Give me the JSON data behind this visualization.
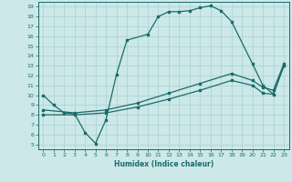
{
  "xlabel": "Humidex (Indice chaleur)",
  "bg_color": "#cce8e8",
  "grid_color": "#aad0d0",
  "line_color": "#1a6b6b",
  "xlim": [
    -0.5,
    23.5
  ],
  "ylim": [
    4.5,
    19.5
  ],
  "xticks": [
    0,
    1,
    2,
    3,
    4,
    5,
    6,
    7,
    8,
    9,
    10,
    11,
    12,
    13,
    14,
    15,
    16,
    17,
    18,
    19,
    20,
    21,
    22,
    23
  ],
  "yticks": [
    5,
    6,
    7,
    8,
    9,
    10,
    11,
    12,
    13,
    14,
    15,
    16,
    17,
    18,
    19
  ],
  "line1_x": [
    0,
    1,
    2,
    3,
    4,
    5,
    6,
    7,
    8,
    10,
    11,
    12,
    13,
    14,
    15,
    16,
    17,
    18,
    20,
    21,
    22,
    23
  ],
  "line1_y": [
    10,
    9,
    8.2,
    8.1,
    6.2,
    5.1,
    7.5,
    12.1,
    15.6,
    16.2,
    18.0,
    18.5,
    18.5,
    18.6,
    18.9,
    19.1,
    18.6,
    17.5,
    13.2,
    11.0,
    10.1,
    13.0
  ],
  "line2_x": [
    0,
    3,
    6,
    9,
    12,
    15,
    18,
    20,
    21,
    22,
    23
  ],
  "line2_y": [
    8.0,
    8.0,
    8.2,
    8.8,
    9.6,
    10.5,
    11.5,
    11.0,
    10.2,
    10.1,
    13.0
  ],
  "line3_x": [
    0,
    3,
    6,
    9,
    12,
    15,
    18,
    20,
    21,
    22,
    23
  ],
  "line3_y": [
    8.5,
    8.2,
    8.5,
    9.2,
    10.2,
    11.2,
    12.2,
    11.5,
    10.8,
    10.5,
    13.2
  ]
}
